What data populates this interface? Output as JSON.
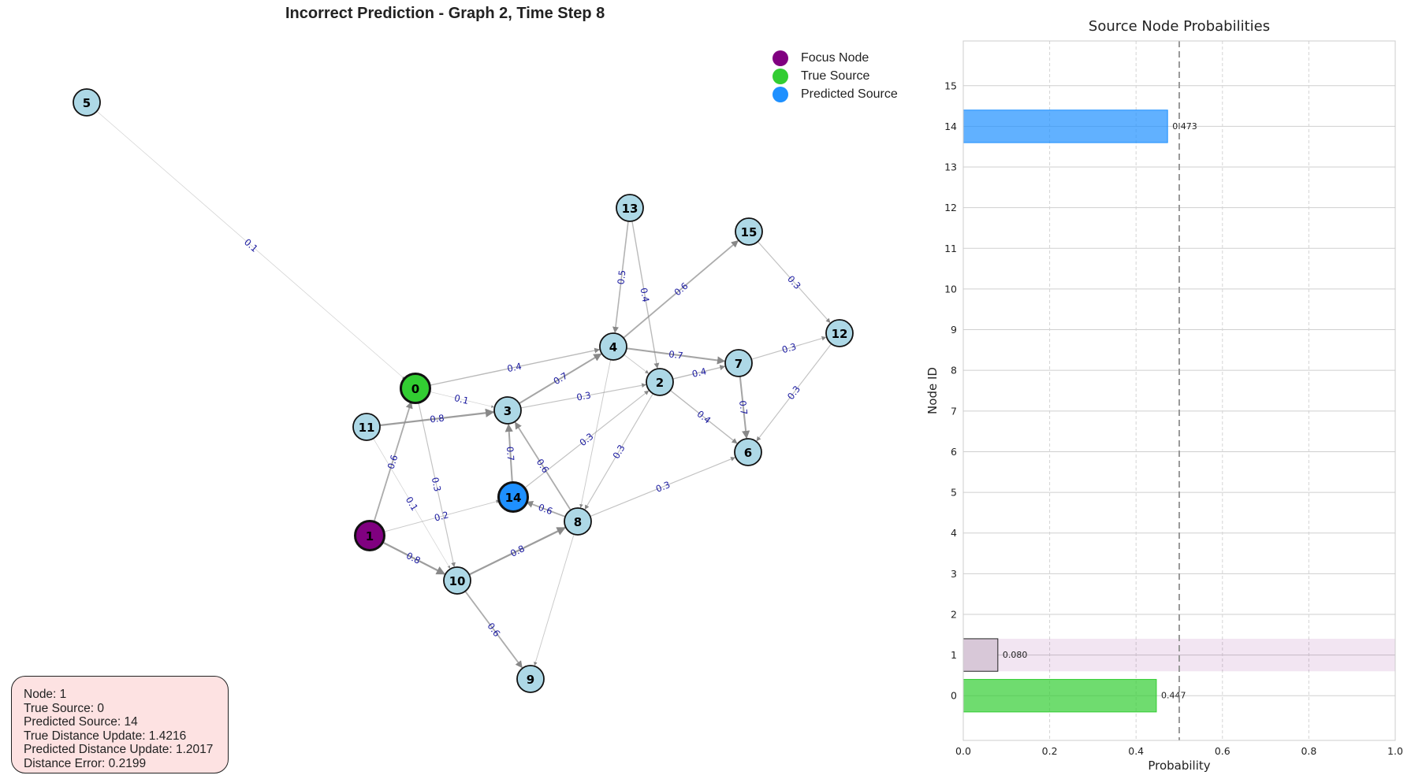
{
  "graph": {
    "title": "Incorrect Prediction - Graph 2, Time Step 8",
    "colors": {
      "default": "#add8e6",
      "focus": "#800080",
      "true_source": "#32cd32",
      "predicted_source": "#1e90ff"
    },
    "nodes": [
      {
        "id": "0",
        "role": "true_source"
      },
      {
        "id": "1",
        "role": "focus"
      },
      {
        "id": "2",
        "role": "default"
      },
      {
        "id": "3",
        "role": "default"
      },
      {
        "id": "4",
        "role": "default"
      },
      {
        "id": "5",
        "role": "default"
      },
      {
        "id": "6",
        "role": "default"
      },
      {
        "id": "7",
        "role": "default"
      },
      {
        "id": "8",
        "role": "default"
      },
      {
        "id": "9",
        "role": "default"
      },
      {
        "id": "10",
        "role": "default"
      },
      {
        "id": "11",
        "role": "default"
      },
      {
        "id": "12",
        "role": "default"
      },
      {
        "id": "13",
        "role": "default"
      },
      {
        "id": "14",
        "role": "predicted_source"
      },
      {
        "id": "15",
        "role": "default"
      }
    ],
    "edges": [
      {
        "from": "5",
        "to": "0",
        "weight": "0.1"
      },
      {
        "from": "0",
        "to": "4",
        "weight": "0.4"
      },
      {
        "from": "0",
        "to": "3",
        "weight": "0.1"
      },
      {
        "from": "1",
        "to": "0",
        "weight": "0.6"
      },
      {
        "from": "0",
        "to": "10",
        "weight": "0.3"
      },
      {
        "from": "11",
        "to": "3",
        "weight": "0.8"
      },
      {
        "from": "11",
        "to": "10",
        "weight": "0.1"
      },
      {
        "from": "1",
        "to": "14",
        "weight": "0.2"
      },
      {
        "from": "1",
        "to": "10",
        "weight": "0.8"
      },
      {
        "from": "10",
        "to": "8",
        "weight": "0.8"
      },
      {
        "from": "10",
        "to": "9",
        "weight": "0.6"
      },
      {
        "from": "3",
        "to": "4",
        "weight": "0.7"
      },
      {
        "from": "3",
        "to": "2",
        "weight": "0.3"
      },
      {
        "from": "14",
        "to": "3",
        "weight": "0.7"
      },
      {
        "from": "8",
        "to": "3",
        "weight": "0.6"
      },
      {
        "from": "8",
        "to": "14",
        "weight": "0.6"
      },
      {
        "from": "14",
        "to": "2",
        "weight": "0.3"
      },
      {
        "from": "2",
        "to": "8",
        "weight": "0.3"
      },
      {
        "from": "8",
        "to": "6",
        "weight": "0.3"
      },
      {
        "from": "13",
        "to": "4",
        "weight": "0.5"
      },
      {
        "from": "13",
        "to": "2",
        "weight": "0.4"
      },
      {
        "from": "4",
        "to": "15",
        "weight": "0.6"
      },
      {
        "from": "4",
        "to": "7",
        "weight": "0.7"
      },
      {
        "from": "4",
        "to": "2",
        "weight": ""
      },
      {
        "from": "4",
        "to": "8",
        "weight": ""
      },
      {
        "from": "2",
        "to": "7",
        "weight": "0.4"
      },
      {
        "from": "2",
        "to": "6",
        "weight": "0.4"
      },
      {
        "from": "7",
        "to": "6",
        "weight": "0.7"
      },
      {
        "from": "7",
        "to": "12",
        "weight": "0.3"
      },
      {
        "from": "15",
        "to": "12",
        "weight": "0.3"
      },
      {
        "from": "12",
        "to": "6",
        "weight": "0.3"
      },
      {
        "from": "8",
        "to": "9",
        "weight": ""
      }
    ]
  },
  "legend": [
    {
      "label": "Focus Node",
      "color": "#800080"
    },
    {
      "label": "True Source",
      "color": "#32cd32"
    },
    {
      "label": "Predicted Source",
      "color": "#1e90ff"
    }
  ],
  "info": {
    "node": "Node: 1",
    "true_source": "True Source: 0",
    "predicted_source": "Predicted Source: 14",
    "true_distance": "True Distance Update: 1.4216",
    "predicted_distance": "Predicted Distance Update: 1.2017",
    "distance_error": "Distance Error: 0.2199"
  },
  "chart_data": {
    "type": "bar",
    "orientation": "horizontal",
    "title": "Source Node Probabilities",
    "xlabel": "Probability",
    "ylabel": "Node ID",
    "xlim": [
      0,
      1
    ],
    "xticks": [
      "0.0",
      "0.2",
      "0.4",
      "0.6",
      "0.8",
      "1.0"
    ],
    "categories": [
      "0",
      "1",
      "2",
      "3",
      "4",
      "5",
      "6",
      "7",
      "8",
      "9",
      "10",
      "11",
      "12",
      "13",
      "14",
      "15"
    ],
    "values": [
      0.447,
      0.08,
      0,
      0,
      0,
      0,
      0,
      0,
      0,
      0,
      0,
      0,
      0,
      0,
      0.473,
      0
    ],
    "value_labels": {
      "0": "0.447",
      "1": "0.080",
      "14": "0.473"
    },
    "bar_colors": {
      "0": "#32cd32",
      "1": "#d8c8d8",
      "14": "#1e90ff"
    },
    "highlight_category": "1",
    "threshold": 0.5,
    "grid": true
  }
}
